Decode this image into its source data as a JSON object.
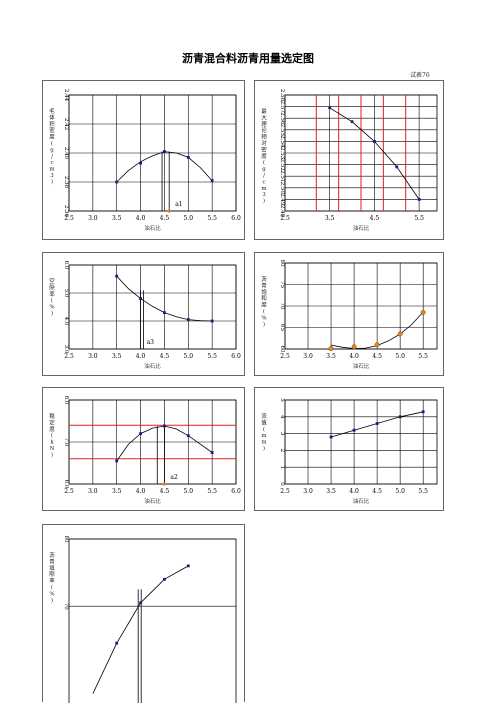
{
  "page": {
    "title": "沥青混合料沥青用量选定图",
    "sheet_no": "试表76"
  },
  "chart_data": [
    {
      "id": "density",
      "type": "scatter",
      "ylabel": "毛体积密度(g/cm3)",
      "xlabel": "油石比",
      "xlim": [
        2.5,
        6.0
      ],
      "xticks": [
        "2.5",
        "3.0",
        "3.5",
        "4.0",
        "4.5",
        "5.0",
        "5.5",
        "6.0"
      ],
      "ylim": [
        2.36,
        2.44
      ],
      "yticks": [
        "2.36",
        "2.38",
        "2.40",
        "2.42",
        "2.44"
      ],
      "x": [
        3.5,
        4.0,
        4.5,
        5.0,
        5.5
      ],
      "y": [
        2.38,
        2.393,
        2.401,
        2.397,
        2.381
      ],
      "fit": [
        [
          3.5,
          2.38
        ],
        [
          3.75,
          2.388
        ],
        [
          4.0,
          2.394
        ],
        [
          4.25,
          2.398
        ],
        [
          4.5,
          2.401
        ],
        [
          4.75,
          2.4
        ],
        [
          5.0,
          2.397
        ],
        [
          5.25,
          2.39
        ],
        [
          5.5,
          2.381
        ]
      ],
      "annotation": "a1",
      "peak_x": 4.6,
      "peak_x2": 4.45
    },
    {
      "id": "theory",
      "type": "scatter",
      "ylabel": "最大理论相对密度(g/cm3)",
      "xlabel": "油石比",
      "xlim": [
        2.5,
        5.9
      ],
      "xticks": [
        "2.5",
        "3.5",
        "4.5",
        "5.5"
      ],
      "ylim": [
        2.48,
        2.58
      ],
      "yticks": [
        "2.48",
        "2.49",
        "2.50",
        "2.51",
        "2.52",
        "2.53",
        "2.54",
        "2.55",
        "2.56",
        "2.57",
        "2.58"
      ],
      "x": [
        3.5,
        4.0,
        4.5,
        5.0,
        5.5
      ],
      "y": [
        2.569,
        2.557,
        2.54,
        2.518,
        2.49
      ],
      "fit": [
        [
          3.5,
          2.569
        ],
        [
          4.0,
          2.557
        ],
        [
          4.5,
          2.54
        ],
        [
          5.0,
          2.518
        ],
        [
          5.5,
          2.49
        ]
      ],
      "red_lines": [
        3.2,
        3.7,
        4.2,
        4.7,
        5.2
      ]
    },
    {
      "id": "voids",
      "type": "scatter",
      "ylabel": "空隙率(%)",
      "xlabel": "油石比",
      "xlim": [
        2.5,
        6.0
      ],
      "xticks": [
        "2.5",
        "3.0",
        "3.5",
        "4.0",
        "4.5",
        "5.0",
        "5.5",
        "6.0"
      ],
      "ylim": [
        3.0,
        6.0
      ],
      "yticks": [
        "3.0",
        "4.0",
        "5.0",
        "6.0"
      ],
      "x": [
        3.5,
        4.0,
        4.5,
        5.0,
        5.5
      ],
      "y": [
        5.6,
        4.8,
        4.3,
        4.05,
        4.0
      ],
      "fit": [
        [
          3.5,
          5.6
        ],
        [
          3.75,
          5.15
        ],
        [
          4.0,
          4.8
        ],
        [
          4.25,
          4.52
        ],
        [
          4.5,
          4.3
        ],
        [
          4.75,
          4.15
        ],
        [
          5.0,
          4.05
        ],
        [
          5.25,
          4.01
        ],
        [
          5.5,
          4.0
        ]
      ],
      "annotation": "a3",
      "marker_x": 4.0
    },
    {
      "id": "vfa",
      "type": "scatter",
      "ylabel": "沥青饱和度(%)",
      "xlabel": "油石比",
      "xlim": [
        2.5,
        5.8
      ],
      "xticks": [
        "2.5",
        "3.0",
        "3.5",
        "4.0",
        "4.5",
        "5.0",
        "5.5"
      ],
      "ylim": [
        60,
        80
      ],
      "yticks": [
        "60",
        "65",
        "70",
        "75",
        "80"
      ],
      "x": [
        3.5,
        4.0,
        4.5,
        5.0,
        5.5
      ],
      "y": [
        60.1,
        60.5,
        61.0,
        63.5,
        68.5
      ],
      "fit": [
        [
          3.5,
          60.9
        ],
        [
          3.75,
          60.4
        ],
        [
          4.0,
          60.1
        ],
        [
          4.25,
          60.2
        ],
        [
          4.5,
          60.8
        ],
        [
          4.75,
          61.9
        ],
        [
          5.0,
          63.5
        ],
        [
          5.25,
          65.7
        ],
        [
          5.5,
          68.6
        ]
      ],
      "highlight_x": [
        3.5,
        4.5
      ]
    },
    {
      "id": "stability",
      "type": "scatter",
      "ylabel": "稳定度(kN)",
      "xlabel": "油石比",
      "xlim": [
        2.5,
        6.0
      ],
      "xticks": [
        "2.5",
        "3.0",
        "3.5",
        "4.0",
        "4.5",
        "5.0",
        "5.5",
        "6.0"
      ],
      "ylim": [
        6.0,
        8.0
      ],
      "yticks": [
        "6.0",
        "7.0",
        "8.0"
      ],
      "x": [
        3.5,
        4.0,
        4.5,
        5.0,
        5.5
      ],
      "y": [
        6.55,
        7.2,
        7.38,
        7.15,
        6.75
      ],
      "fit": [
        [
          3.5,
          6.55
        ],
        [
          3.75,
          6.95
        ],
        [
          4.0,
          7.2
        ],
        [
          4.25,
          7.33
        ],
        [
          4.5,
          7.38
        ],
        [
          4.75,
          7.31
        ],
        [
          5.0,
          7.15
        ],
        [
          5.25,
          6.95
        ],
        [
          5.5,
          6.75
        ]
      ],
      "red_lines_y": [
        7.4,
        6.6
      ],
      "annotation": "a2",
      "peak_x": 4.5,
      "peak_x2": 4.35
    },
    {
      "id": "flow",
      "type": "scatter",
      "ylabel": "流值(mm)",
      "xlabel": "油石比",
      "xlim": [
        2.5,
        5.8
      ],
      "xticks": [
        "2.5",
        "3.0",
        "3.5",
        "4.0",
        "4.5",
        "5.0",
        "5.5"
      ],
      "ylim": [
        0,
        5
      ],
      "yticks": [
        "0",
        "1",
        "2",
        "3",
        "4",
        "5"
      ],
      "x": [
        3.5,
        4.0,
        4.5,
        5.0,
        5.5
      ],
      "y": [
        2.8,
        3.2,
        3.6,
        4.0,
        4.3
      ],
      "fit": [
        [
          3.5,
          2.8
        ],
        [
          4.0,
          3.2
        ],
        [
          4.5,
          3.6
        ],
        [
          5.0,
          4.0
        ],
        [
          5.5,
          4.3
        ]
      ]
    },
    {
      "id": "vma",
      "type": "scatter",
      "ylabel": "沥青填隙率(%)",
      "xlabel": "",
      "xlim": [
        2.5,
        6.0
      ],
      "xticks": [],
      "ylim": [
        55,
        80
      ],
      "yticks": [
        "70",
        "80"
      ],
      "x": [
        3.5,
        4.0,
        4.5,
        5.0
      ],
      "y": [
        64.5,
        70.5,
        74.0,
        76.0
      ],
      "fit": [
        [
          3.0,
          57.0
        ],
        [
          3.5,
          64.5
        ],
        [
          4.0,
          70.5
        ],
        [
          4.5,
          74.0
        ],
        [
          5.0,
          76.0
        ]
      ],
      "marker_x": 3.95
    }
  ]
}
